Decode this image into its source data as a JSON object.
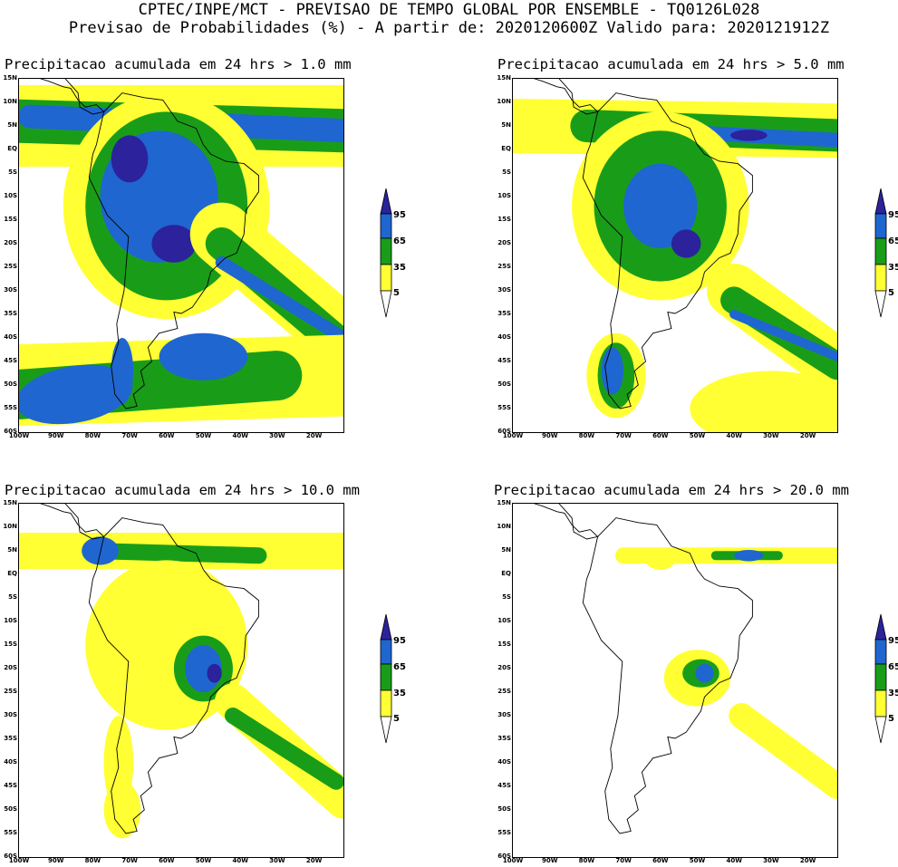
{
  "header": {
    "line1": "CPTEC/INPE/MCT - PREVISAO DE TEMPO GLOBAL POR ENSEMBLE - TQ0126L028",
    "line2": "Previsao de Probabilidades (%) -  A partir de: 2020120600Z  Valido para: 2020121912Z"
  },
  "colors": {
    "yellow": "#ffff33",
    "green": "#199d19",
    "blue": "#1f66d0",
    "darkblue": "#2b229c",
    "coast": "#000000"
  },
  "lat_labels": [
    "15N",
    "10N",
    "5N",
    "EQ",
    "5S",
    "10S",
    "15S",
    "20S",
    "25S",
    "30S",
    "35S",
    "40S",
    "45S",
    "50S",
    "55S",
    "60S"
  ],
  "lon_labels": [
    "100W",
    "90W",
    "80W",
    "70W",
    "60W",
    "50W",
    "40W",
    "30W",
    "20W"
  ],
  "colorbar_labels": [
    "95",
    "65",
    "35",
    "5"
  ],
  "panels": [
    {
      "id": "p1",
      "title": "Precipitacao acumulada em 24 hrs > 1.0 mm",
      "coverage": "high"
    },
    {
      "id": "p2",
      "title": "Precipitacao acumulada em 24 hrs > 5.0 mm",
      "coverage": "medium"
    },
    {
      "id": "p3",
      "title": "Precipitacao acumulada em 24 hrs > 10.0 mm",
      "coverage": "lower"
    },
    {
      "id": "p4",
      "title": "Precipitacao acumulada em 24 hrs > 20.0 mm",
      "coverage": "low"
    }
  ]
}
